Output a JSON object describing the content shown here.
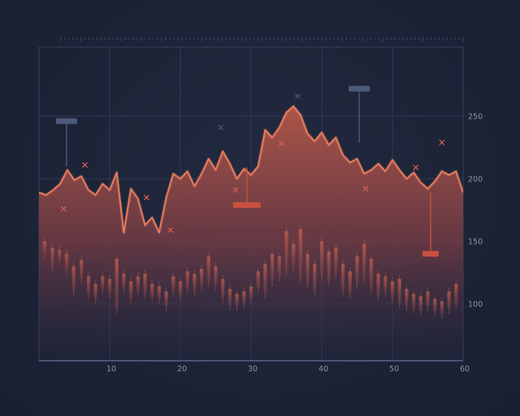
{
  "chart_data": {
    "type": "area",
    "x_ticks": [
      10,
      20,
      30,
      40,
      50,
      60
    ],
    "y_ticks": [
      100,
      150,
      200,
      250
    ],
    "xlim": [
      0,
      60
    ],
    "ylim": [
      50,
      260
    ],
    "grid": true,
    "colors": {
      "line": "#f07a5a",
      "fill_top": "#b45748",
      "fill_bottom": "#2a2a44",
      "grid": "#3a4260",
      "marker": "#d9604e",
      "volume": "#5c6788",
      "markers_dark": "#4a5470"
    },
    "series": [
      {
        "values": [
          [
            0,
            189
          ],
          [
            1,
            187
          ],
          [
            2,
            191
          ],
          [
            3,
            196
          ],
          [
            4,
            207
          ],
          [
            5,
            199
          ],
          [
            6,
            202
          ],
          [
            7,
            191
          ],
          [
            8,
            187
          ],
          [
            9,
            196
          ],
          [
            10,
            191
          ],
          [
            11,
            205
          ],
          [
            12,
            157
          ],
          [
            13,
            192
          ],
          [
            14,
            184
          ],
          [
            15,
            163
          ],
          [
            16,
            169
          ],
          [
            17,
            157
          ],
          [
            18,
            185
          ],
          [
            19,
            204
          ],
          [
            20,
            200
          ],
          [
            21,
            206
          ],
          [
            22,
            194
          ],
          [
            23,
            204
          ],
          [
            24,
            216
          ],
          [
            25,
            207
          ],
          [
            26,
            222
          ],
          [
            27,
            212
          ],
          [
            28,
            200
          ],
          [
            29,
            208
          ],
          [
            30,
            203
          ],
          [
            31,
            210
          ],
          [
            32,
            239
          ],
          [
            33,
            233
          ],
          [
            34,
            241
          ],
          [
            35,
            253
          ],
          [
            36,
            258
          ],
          [
            37,
            251
          ],
          [
            38,
            236
          ],
          [
            39,
            230
          ],
          [
            40,
            237
          ],
          [
            41,
            227
          ],
          [
            42,
            233
          ],
          [
            43,
            219
          ],
          [
            44,
            213
          ],
          [
            45,
            216
          ],
          [
            46,
            204
          ],
          [
            47,
            207
          ],
          [
            48,
            212
          ],
          [
            49,
            206
          ],
          [
            50,
            215
          ],
          [
            51,
            207
          ],
          [
            52,
            200
          ],
          [
            53,
            205
          ],
          [
            54,
            197
          ],
          [
            55,
            192
          ],
          [
            56,
            198
          ],
          [
            57,
            206
          ],
          [
            58,
            203
          ],
          [
            59,
            206
          ],
          [
            60,
            189
          ]
        ]
      }
    ],
    "candles": [
      [
        0.8,
        140,
        150
      ],
      [
        1.9,
        130,
        145
      ],
      [
        2.9,
        135,
        143
      ],
      [
        3.9,
        128,
        140
      ],
      [
        4.9,
        110,
        130
      ],
      [
        6.0,
        120,
        135
      ],
      [
        7.0,
        108,
        122
      ],
      [
        8.0,
        104,
        116
      ],
      [
        9.0,
        112,
        122
      ],
      [
        10.0,
        108,
        120
      ],
      [
        11.0,
        96,
        136
      ],
      [
        12.0,
        112,
        124
      ],
      [
        13.0,
        104,
        118
      ],
      [
        14.0,
        110,
        122
      ],
      [
        15.0,
        108,
        124
      ],
      [
        16.0,
        105,
        116
      ],
      [
        17.0,
        104,
        114
      ],
      [
        18.0,
        98,
        110
      ],
      [
        19.0,
        110,
        122
      ],
      [
        20.0,
        106,
        118
      ],
      [
        21.0,
        112,
        126
      ],
      [
        22.0,
        110,
        124
      ],
      [
        23.0,
        114,
        128
      ],
      [
        24.0,
        118,
        138
      ],
      [
        25.0,
        115,
        130
      ],
      [
        26.0,
        104,
        120
      ],
      [
        27.0,
        99,
        112
      ],
      [
        28.0,
        98,
        108
      ],
      [
        29.0,
        100,
        110
      ],
      [
        30.0,
        104,
        114
      ],
      [
        31.0,
        112,
        126
      ],
      [
        32.0,
        108,
        132
      ],
      [
        33.0,
        118,
        140
      ],
      [
        34.0,
        122,
        138
      ],
      [
        35.0,
        126,
        158
      ],
      [
        36.0,
        130,
        148
      ],
      [
        37.0,
        120,
        160
      ],
      [
        38.0,
        116,
        140
      ],
      [
        39.0,
        110,
        132
      ],
      [
        40.0,
        122,
        150
      ],
      [
        41.0,
        118,
        142
      ],
      [
        42.0,
        124,
        145
      ],
      [
        43.0,
        110,
        132
      ],
      [
        44.0,
        108,
        126
      ],
      [
        45.0,
        116,
        138
      ],
      [
        46.0,
        120,
        148
      ],
      [
        47.0,
        112,
        136
      ],
      [
        48.0,
        106,
        124
      ],
      [
        49.0,
        110,
        122
      ],
      [
        50.0,
        104,
        118
      ],
      [
        51.0,
        100,
        120
      ],
      [
        52.0,
        98,
        112
      ],
      [
        53.0,
        96,
        108
      ],
      [
        54.0,
        94,
        106
      ],
      [
        55.0,
        98,
        110
      ],
      [
        56.0,
        94,
        104
      ],
      [
        57.0,
        92,
        102
      ],
      [
        58.0,
        96,
        110
      ],
      [
        59.0,
        100,
        116
      ]
    ],
    "volume": [
      [
        1,
        0.55
      ],
      [
        2,
        0.42
      ],
      [
        3,
        0.25
      ],
      [
        4,
        0.15
      ],
      [
        5,
        0.35
      ],
      [
        6,
        0.42
      ],
      [
        7,
        0.5
      ],
      [
        8,
        0.55
      ],
      [
        9,
        0.6
      ],
      [
        10,
        0.72
      ],
      [
        11,
        0.78
      ],
      [
        12,
        0.72
      ],
      [
        13,
        0.7
      ],
      [
        14,
        0.88
      ],
      [
        15,
        0.95
      ],
      [
        16,
        0.9
      ],
      [
        17,
        0.85
      ],
      [
        18,
        0.82
      ],
      [
        19,
        0.55
      ],
      [
        20,
        0.45
      ],
      [
        21,
        0.6
      ],
      [
        22,
        0.48
      ],
      [
        23,
        0.72
      ],
      [
        24,
        0.82
      ],
      [
        25,
        0.9
      ],
      [
        26,
        0.88
      ],
      [
        27,
        0.78
      ],
      [
        28,
        0.45
      ],
      [
        29,
        0.42
      ],
      [
        30,
        0.35
      ],
      [
        31,
        0.38
      ],
      [
        32,
        0.45
      ],
      [
        33,
        0.55
      ],
      [
        34,
        0.82
      ],
      [
        35,
        0.88
      ],
      [
        36,
        0.9
      ],
      [
        37,
        0.85
      ],
      [
        38,
        0.82
      ],
      [
        39,
        0.72
      ],
      [
        40,
        0.55
      ],
      [
        41,
        0.6
      ],
      [
        42,
        0.65
      ],
      [
        43,
        0.78
      ],
      [
        44,
        0.72
      ],
      [
        45,
        0.65
      ],
      [
        46,
        0.82
      ],
      [
        47,
        0.9
      ],
      [
        48,
        0.95
      ],
      [
        49,
        0.92
      ],
      [
        50,
        0.95
      ],
      [
        51,
        0.6
      ],
      [
        52,
        0.62
      ],
      [
        53,
        0.72
      ],
      [
        54,
        0.78
      ],
      [
        55,
        0.85
      ],
      [
        56,
        0.95
      ],
      [
        57,
        0.98
      ],
      [
        58,
        1.0
      ],
      [
        59,
        0.6
      ]
    ],
    "x_markers": [
      [
        3.5,
        176
      ],
      [
        6.5,
        211
      ],
      [
        15.2,
        185
      ],
      [
        18.6,
        159
      ],
      [
        25.7,
        241
      ],
      [
        27.8,
        191
      ],
      [
        34.3,
        228
      ],
      [
        36.6,
        266
      ],
      [
        46.2,
        192
      ],
      [
        53.3,
        209
      ],
      [
        57.0,
        229
      ]
    ],
    "bracket_markers": [
      [
        3.9,
        246,
        210,
        "dark"
      ],
      [
        29.4,
        179,
        209,
        "red"
      ],
      [
        45.3,
        272,
        229,
        "dark"
      ],
      [
        55.4,
        140,
        189,
        "red"
      ]
    ]
  }
}
